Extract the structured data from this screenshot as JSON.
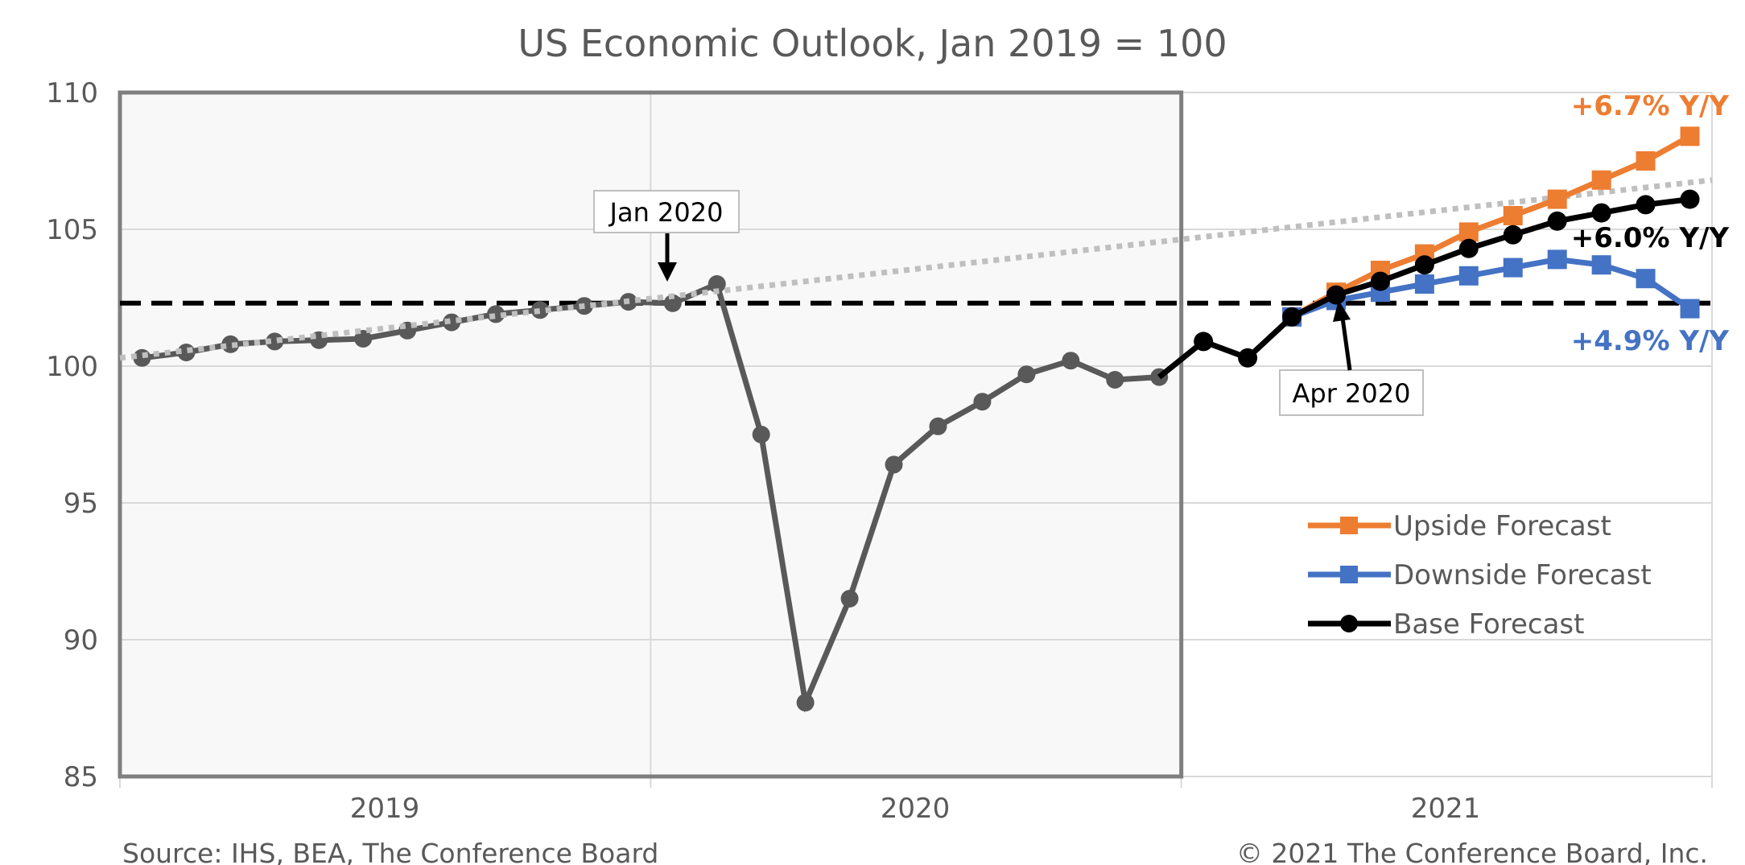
{
  "chart_data": {
    "type": "line",
    "title": "US Economic Outlook, Jan 2019 = 100",
    "ylim": [
      85,
      110
    ],
    "yticks": [
      "85",
      "90",
      "95",
      "100",
      "105",
      "110"
    ],
    "xticks": [
      "2019",
      "2020",
      "2021"
    ],
    "grid": true,
    "legend_position": "bottom-right",
    "shaded_region": "2019–2020",
    "reference_line": 102.3,
    "trend_line": [
      100.3,
      106.8
    ],
    "history": [
      100.3,
      100.5,
      100.8,
      100.9,
      100.95,
      101.0,
      101.3,
      101.6,
      101.9,
      102.05,
      102.2,
      102.35,
      102.3,
      103.0,
      97.5,
      87.7,
      91.5,
      96.4,
      97.8,
      98.7,
      99.7,
      100.2,
      99.5,
      99.6
    ],
    "series": [
      {
        "name": "Upside Forecast",
        "color": "#ED7D31",
        "marker": "square",
        "start_month": 26,
        "values": [
          101.8,
          102.7,
          103.5,
          104.1,
          104.9,
          105.5,
          106.1,
          106.8,
          107.5,
          108.4
        ],
        "end_label": "+6.7% Y/Y"
      },
      {
        "name": "Downside Forecast",
        "color": "#4472C4",
        "marker": "square",
        "start_month": 26,
        "values": [
          101.8,
          102.4,
          102.7,
          103.0,
          103.3,
          103.6,
          103.9,
          103.7,
          103.2,
          102.1
        ],
        "end_label": "+4.9% Y/Y"
      },
      {
        "name": "Base Forecast",
        "color": "#000000",
        "marker": "circle",
        "start_month": 23,
        "values": [
          99.6,
          100.9,
          100.3,
          101.8,
          102.6,
          103.1,
          103.7,
          104.3,
          104.8,
          105.3,
          105.6,
          105.9,
          106.1
        ],
        "end_label": "+6.0% Y/Y"
      }
    ],
    "annotations": [
      "Jan 2020",
      "Apr 2020"
    ],
    "source": "Source: IHS, BEA, The Conference Board",
    "copyright": "© 2021 The Conference Board, Inc."
  }
}
